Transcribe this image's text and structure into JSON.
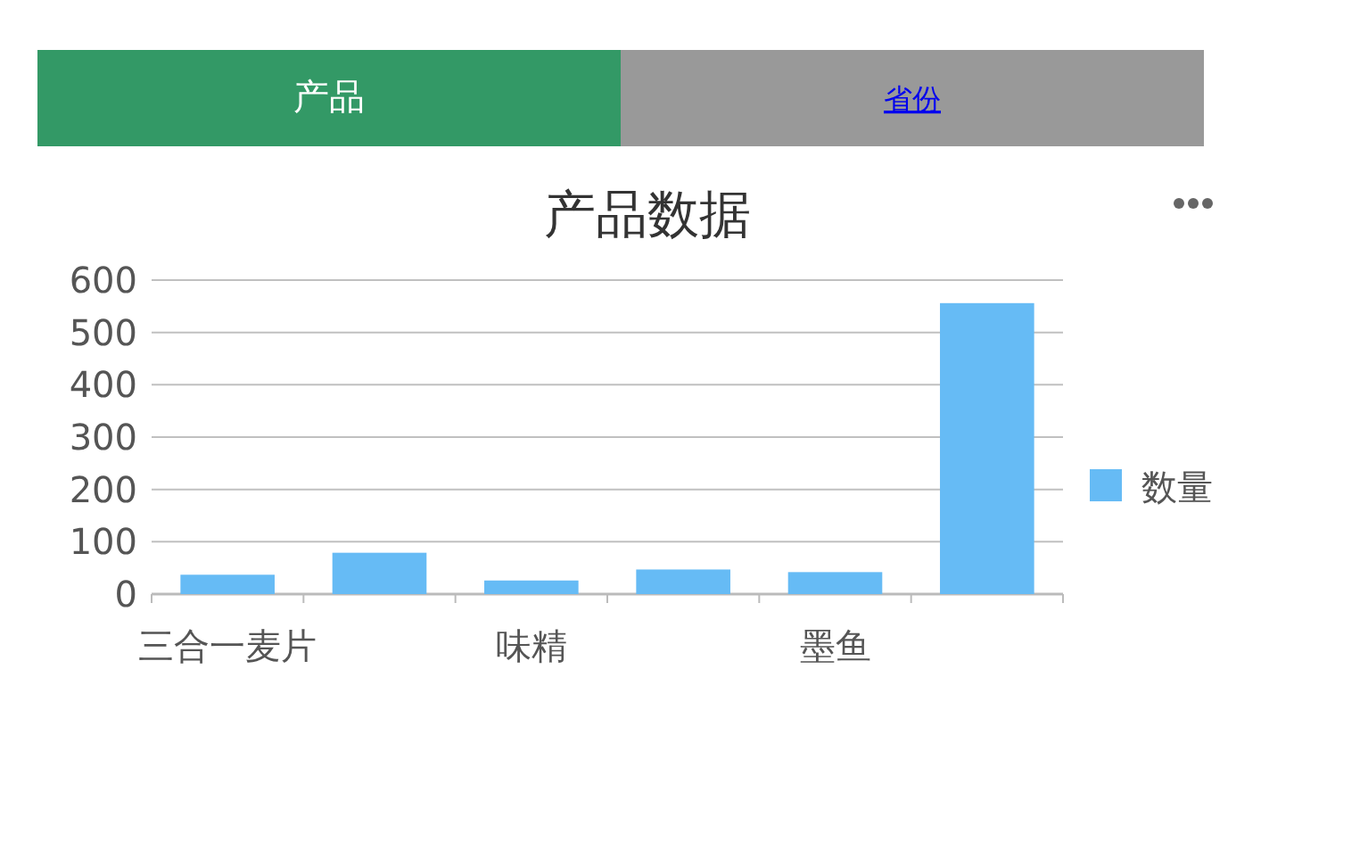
{
  "chart_data": {
    "type": "bar",
    "title": "产品数据",
    "annotations": [
      "产品",
      "省份"
    ],
    "categories": [
      "三合一麦片",
      null,
      "味精",
      null,
      "墨鱼",
      null
    ],
    "series": [
      {
        "name": "数量",
        "color": "#66bbf5",
        "values": [
          37,
          79,
          26,
          47,
          42,
          556
        ]
      }
    ],
    "ylim": [
      0,
      600
    ],
    "yticks": [
      0,
      100,
      200,
      300,
      400,
      500,
      600
    ],
    "grid": "y",
    "legend": "right"
  }
}
